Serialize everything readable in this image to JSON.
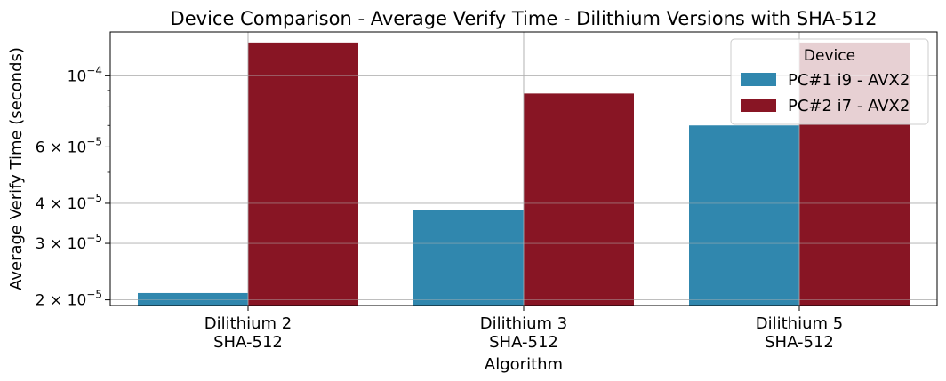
{
  "chart_data": {
    "type": "bar",
    "title": "Device Comparison - Average Verify Time - Dilithium Versions with SHA-512",
    "xlabel": "Algorithm",
    "ylabel": "Average Verify Time (seconds)",
    "yscale": "log",
    "ylim": [
      1.92e-05,
      0.000137
    ],
    "grid": true,
    "categories": [
      {
        "line1": "Dilithium 2",
        "line2": "SHA-512"
      },
      {
        "line1": "Dilithium 3",
        "line2": "SHA-512"
      },
      {
        "line1": "Dilithium 5",
        "line2": "SHA-512"
      }
    ],
    "series": [
      {
        "name": "PC#1 i9 - AVX2",
        "color": "#3087ae",
        "values": [
          2.1e-05,
          3.8e-05,
          7e-05
        ]
      },
      {
        "name": "PC#2 i7 - AVX2",
        "color": "#881524",
        "values": [
          0.000127,
          8.8e-05,
          0.000127
        ]
      }
    ],
    "yticks": [
      {
        "value": 0.0001,
        "mant": "10",
        "exp": "−4"
      },
      {
        "value": 6e-05,
        "mant": "6 × 10",
        "exp": "−5"
      },
      {
        "value": 4e-05,
        "mant": "4 × 10",
        "exp": "−5"
      },
      {
        "value": 3e-05,
        "mant": "3 × 10",
        "exp": "−5"
      },
      {
        "value": 2e-05,
        "mant": "2 × 10",
        "exp": "−5"
      }
    ],
    "minor_yticks": [
      5e-05,
      7e-05,
      8e-05,
      9e-05
    ],
    "legend": {
      "title": "Device",
      "placement": "top-right"
    }
  }
}
